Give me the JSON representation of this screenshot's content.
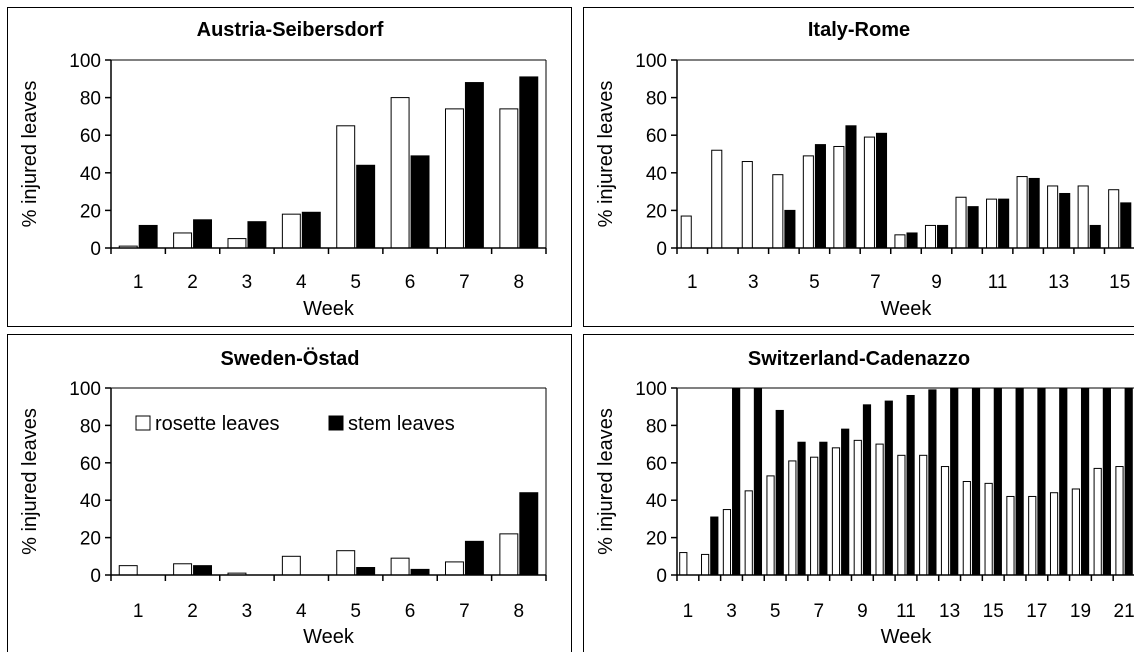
{
  "chart_data": [
    {
      "type": "bar",
      "title": "Austria-Seibersdorf",
      "xlabel": "Week",
      "ylabel": "% injured leaves",
      "ylim": [
        0,
        100
      ],
      "yticks": [
        "0",
        "20",
        "40",
        "60",
        "80",
        "100"
      ],
      "categories": [
        "1",
        "2",
        "3",
        "4",
        "5",
        "6",
        "7",
        "8"
      ],
      "xtick_labels": [
        "1",
        "2",
        "3",
        "4",
        "5",
        "6",
        "7",
        "8"
      ],
      "series": [
        {
          "name": "rosette leaves",
          "color": "#ffffff",
          "values": [
            1,
            8,
            5,
            18,
            65,
            80,
            74,
            74
          ]
        },
        {
          "name": "stem leaves",
          "color": "#000000",
          "values": [
            12,
            15,
            14,
            19,
            44,
            49,
            88,
            91
          ]
        }
      ]
    },
    {
      "type": "bar",
      "title": "Italy-Rome",
      "xlabel": "Week",
      "ylabel": "% injured leaves",
      "ylim": [
        0,
        100
      ],
      "yticks": [
        "0",
        "20",
        "40",
        "60",
        "80",
        "100"
      ],
      "categories": [
        "1",
        "2",
        "3",
        "4",
        "5",
        "6",
        "7",
        "8",
        "9",
        "10",
        "11",
        "12",
        "13",
        "14",
        "15"
      ],
      "xtick_labels": [
        "1",
        "",
        "3",
        "",
        "5",
        "",
        "7",
        "",
        "9",
        "",
        "11",
        "",
        "13",
        "",
        "15"
      ],
      "series": [
        {
          "name": "rosette leaves",
          "color": "#ffffff",
          "values": [
            17,
            52,
            46,
            39,
            49,
            54,
            59,
            7,
            12,
            27,
            26,
            38,
            33,
            33,
            31
          ]
        },
        {
          "name": "stem leaves",
          "color": "#000000",
          "values": [
            0,
            0,
            0,
            20,
            55,
            65,
            61,
            8,
            12,
            22,
            26,
            37,
            29,
            12,
            24
          ]
        }
      ]
    },
    {
      "type": "bar",
      "title": "Sweden-Östad",
      "xlabel": "Week",
      "ylabel": "% injured leaves",
      "ylim": [
        0,
        100
      ],
      "yticks": [
        "0",
        "20",
        "40",
        "60",
        "80",
        "100"
      ],
      "categories": [
        "1",
        "2",
        "3",
        "4",
        "5",
        "6",
        "7",
        "8"
      ],
      "xtick_labels": [
        "1",
        "2",
        "3",
        "4",
        "5",
        "6",
        "7",
        "8"
      ],
      "legend": {
        "position": "top-left",
        "items": [
          "rosette leaves",
          "stem leaves"
        ]
      },
      "series": [
        {
          "name": "rosette leaves",
          "color": "#ffffff",
          "values": [
            5,
            6,
            1,
            10,
            13,
            9,
            7,
            22
          ]
        },
        {
          "name": "stem leaves",
          "color": "#000000",
          "values": [
            0,
            5,
            0,
            0,
            4,
            3,
            18,
            44
          ]
        }
      ]
    },
    {
      "type": "bar",
      "title": "Switzerland-Cadenazzo",
      "xlabel": "Week",
      "ylabel": "% injured leaves",
      "ylim": [
        0,
        100
      ],
      "yticks": [
        "0",
        "20",
        "40",
        "60",
        "80",
        "100"
      ],
      "categories": [
        "1",
        "2",
        "3",
        "4",
        "5",
        "6",
        "7",
        "8",
        "9",
        "10",
        "11",
        "12",
        "13",
        "14",
        "15",
        "16",
        "17",
        "18",
        "19",
        "20",
        "21"
      ],
      "xtick_labels": [
        "1",
        "",
        "3",
        "",
        "5",
        "",
        "7",
        "",
        "9",
        "",
        "11",
        "",
        "13",
        "",
        "15",
        "",
        "17",
        "",
        "19",
        "",
        "21"
      ],
      "series": [
        {
          "name": "rosette leaves",
          "color": "#ffffff",
          "values": [
            12,
            11,
            35,
            45,
            53,
            61,
            63,
            68,
            72,
            70,
            64,
            64,
            58,
            50,
            49,
            42,
            42,
            44,
            46,
            57,
            58
          ]
        },
        {
          "name": "stem leaves",
          "color": "#000000",
          "values": [
            0,
            31,
            100,
            100,
            88,
            71,
            71,
            78,
            91,
            93,
            96,
            99,
            100,
            100,
            100,
            100,
            100,
            100,
            100,
            100,
            100
          ]
        }
      ]
    }
  ]
}
